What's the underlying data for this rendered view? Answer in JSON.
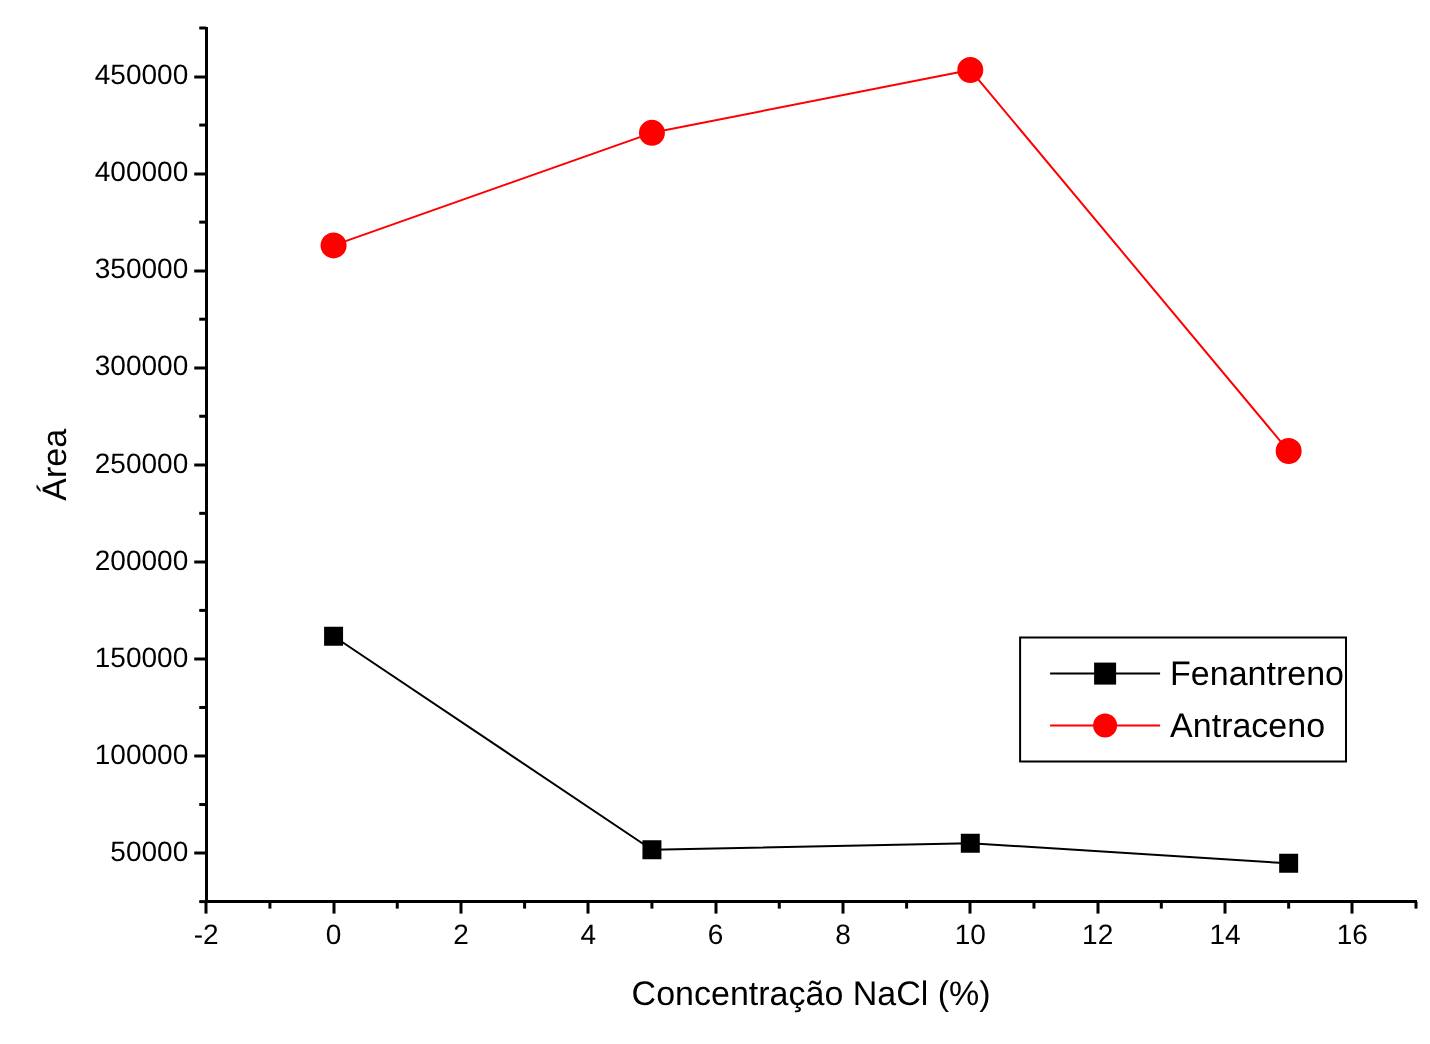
{
  "chart_data": {
    "type": "line",
    "xlabel": "Concentração NaCl (%)",
    "ylabel": "Área",
    "x": [
      0,
      5,
      10,
      15
    ],
    "series": [
      {
        "name": "Fenantreno",
        "color": "#000000",
        "marker": "square",
        "values": [
          161700,
          51700,
          55100,
          44700
        ]
      },
      {
        "name": "Antraceno",
        "color": "#ff0000",
        "marker": "circle",
        "values": [
          363000,
          421000,
          453400,
          257100
        ]
      }
    ],
    "xlim": [
      -2,
      17
    ],
    "xticks": [
      -2,
      0,
      2,
      4,
      6,
      8,
      10,
      12,
      14,
      16
    ],
    "ylim": [
      25000,
      475000
    ],
    "yticks": [
      50000,
      100000,
      150000,
      200000,
      250000,
      300000,
      350000,
      400000,
      450000
    ],
    "grid": false,
    "legend": "bottom right",
    "line_style": "solid"
  }
}
